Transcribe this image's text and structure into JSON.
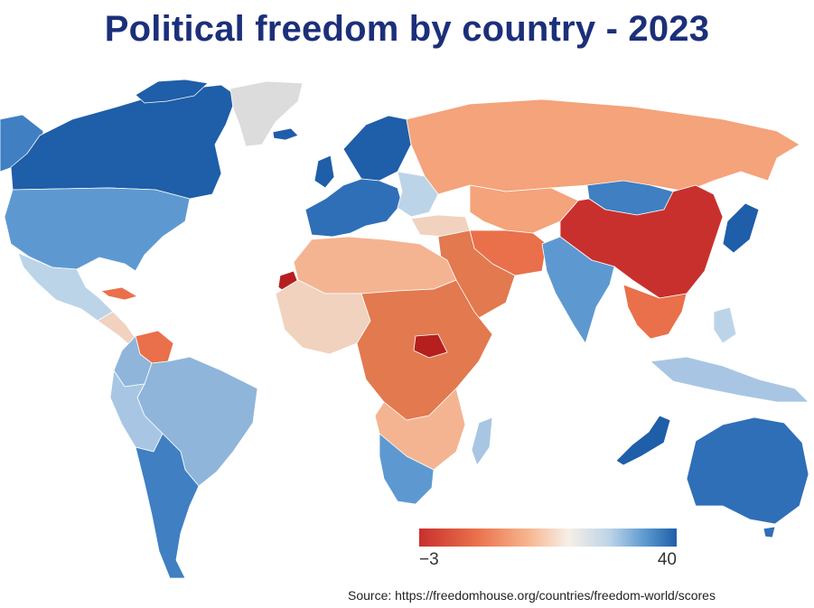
{
  "title": "Political freedom by country - 2023",
  "legend": {
    "min_label": "−3",
    "max_label": "40",
    "min_value": -3,
    "max_value": 40,
    "colors": [
      "#c8302d",
      "#e9704b",
      "#f7b48d",
      "#f7efe7",
      "#bcd4e8",
      "#5a98cf",
      "#1f5ea8"
    ]
  },
  "source": "Source: https://freedomhouse.org/countries/freedom-world/scores"
}
